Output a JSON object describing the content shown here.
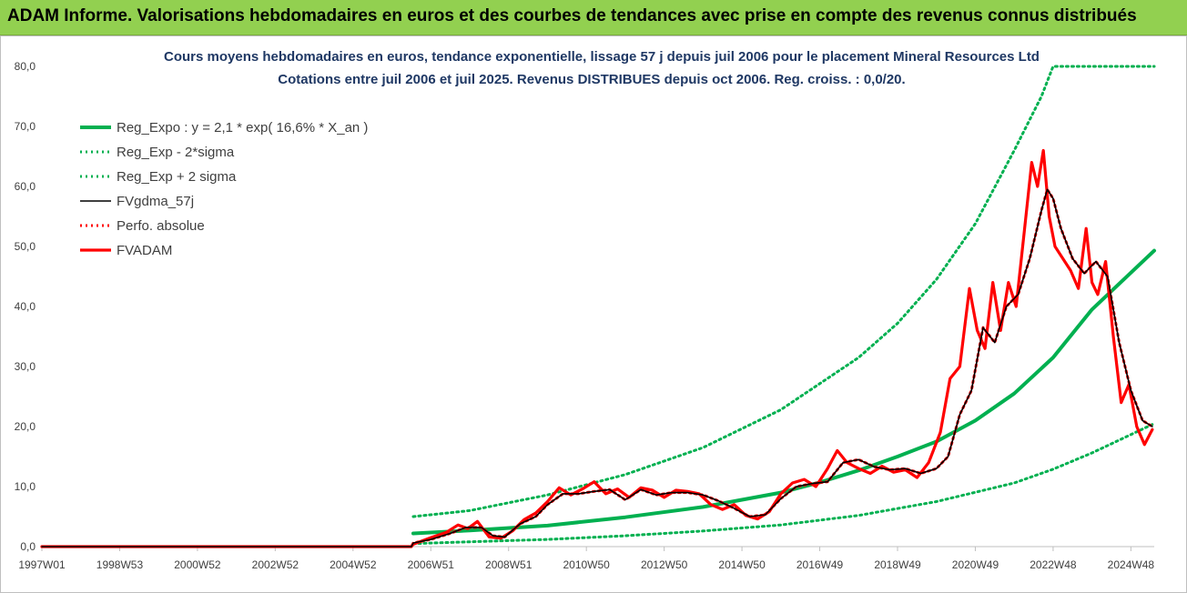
{
  "header": {
    "title": "ADAM Informe. Valorisations hebdomadaires en euros et des courbes de tendances avec prise en compte des revenus connus distribués"
  },
  "colors": {
    "banner": "#92d050",
    "trend": "#00b050",
    "sigma": "#00b050",
    "fvgdma": "#000000",
    "perfo": "#ff0000",
    "fvadam": "#ff0000"
  },
  "chart_data": {
    "type": "line",
    "title": "Cours moyens hebdomadaires en euros, tendance exponentielle, lissage 57 j depuis juil 2006 pour le placement Mineral Resources Ltd",
    "subtitle": "Cotations entre juil 2006 et juil 2025.  Revenus DISTRIBUES depuis oct 2006. Reg. croiss. : 0,0/20.",
    "xlabel": "",
    "ylabel": "",
    "x_range": [
      1997.0,
      2025.6
    ],
    "ylim": [
      0,
      80
    ],
    "y_ticks": [
      "0,0",
      "10,0",
      "20,0",
      "30,0",
      "40,0",
      "50,0",
      "60,0",
      "70,0",
      "80,0"
    ],
    "x_ticks": [
      {
        "label": "1997W01",
        "x": 1997.0
      },
      {
        "label": "1998W53",
        "x": 1999.0
      },
      {
        "label": "2000W52",
        "x": 2001.0
      },
      {
        "label": "2002W52",
        "x": 2003.0
      },
      {
        "label": "2004W52",
        "x": 2005.0
      },
      {
        "label": "2006W51",
        "x": 2007.0
      },
      {
        "label": "2008W51",
        "x": 2009.0
      },
      {
        "label": "2010W50",
        "x": 2011.0
      },
      {
        "label": "2012W50",
        "x": 2013.0
      },
      {
        "label": "2014W50",
        "x": 2015.0
      },
      {
        "label": "2016W49",
        "x": 2017.0
      },
      {
        "label": "2018W49",
        "x": 2019.0
      },
      {
        "label": "2020W49",
        "x": 2021.0
      },
      {
        "label": "2022W48",
        "x": 2023.0
      },
      {
        "label": "2024W48",
        "x": 2025.0
      }
    ],
    "grid": false,
    "legend_position": "top-left",
    "series": [
      {
        "name": "Reg_Expo : y = 2,1 * exp( 16,6% *  X_an )",
        "style": "solid-thick",
        "color": "#00b050",
        "x": [
          2006.55,
          2008,
          2010,
          2012,
          2014,
          2016,
          2017,
          2018,
          2019,
          2020,
          2021,
          2022,
          2023,
          2024,
          2025.6
        ],
        "y": [
          2.2,
          2.7,
          3.5,
          4.9,
          6.6,
          9.0,
          10.7,
          12.7,
          15.0,
          17.5,
          21.0,
          25.5,
          31.5,
          39.5,
          49.3
        ]
      },
      {
        "name": "Reg_Exp - 2*sigma",
        "style": "dotted",
        "color": "#00b050",
        "x": [
          2006.55,
          2008,
          2010,
          2012,
          2014,
          2016,
          2018,
          2020,
          2022,
          2023,
          2024,
          2025.6
        ],
        "y": [
          0.5,
          0.8,
          1.2,
          1.8,
          2.6,
          3.6,
          5.2,
          7.5,
          10.6,
          12.9,
          15.6,
          20.5
        ]
      },
      {
        "name": "Reg_Exp + 2 sigma",
        "style": "dotted",
        "color": "#00b050",
        "x": [
          2006.55,
          2008,
          2010,
          2012,
          2014,
          2016,
          2018,
          2019,
          2020,
          2021,
          2022,
          2022.7,
          2023.0,
          2025.6
        ],
        "y": [
          5.0,
          6.0,
          8.6,
          12.0,
          16.5,
          22.8,
          31.5,
          37.2,
          44.5,
          53.8,
          66.0,
          75.0,
          80.0,
          80.0
        ]
      },
      {
        "name": "FVgdma_57j",
        "style": "solid",
        "color": "#000000",
        "x": [
          1997.0,
          2006.5,
          2006.55,
          2007.0,
          2007.5,
          2007.9,
          2008.3,
          2008.6,
          2008.9,
          2009.3,
          2009.7,
          2010.0,
          2010.4,
          2010.8,
          2011.2,
          2011.6,
          2012.0,
          2012.4,
          2012.8,
          2013.2,
          2013.6,
          2014.0,
          2014.4,
          2014.8,
          2015.2,
          2015.6,
          2016.0,
          2016.4,
          2016.8,
          2017.2,
          2017.6,
          2018.0,
          2018.4,
          2018.8,
          2019.2,
          2019.6,
          2020.0,
          2020.3,
          2020.6,
          2020.9,
          2021.2,
          2021.5,
          2021.8,
          2022.1,
          2022.4,
          2022.7,
          2022.85,
          2023.0,
          2023.2,
          2023.5,
          2023.8,
          2024.1,
          2024.4,
          2024.7,
          2025.0,
          2025.3,
          2025.55
        ],
        "y": [
          0,
          0,
          0.6,
          1.2,
          2.2,
          3.2,
          3.2,
          1.8,
          1.6,
          3.8,
          5.0,
          7.0,
          8.8,
          8.8,
          9.2,
          9.5,
          7.8,
          9.5,
          8.6,
          9.0,
          9.0,
          8.6,
          7.6,
          6.4,
          5.0,
          5.3,
          8.0,
          10.0,
          10.5,
          10.8,
          14.0,
          14.5,
          13.3,
          12.8,
          13.0,
          12.2,
          13.0,
          15.0,
          22.0,
          26.0,
          36.5,
          34.0,
          40.0,
          42.0,
          48.0,
          56.0,
          59.5,
          58.0,
          53.0,
          48.0,
          45.5,
          47.5,
          45.0,
          34.0,
          26.0,
          21.0,
          20.0
        ]
      },
      {
        "name": "Perfo. absolue",
        "style": "dotted",
        "color": "#ff0000",
        "x": [
          1997.0,
          2006.5,
          2006.55,
          2007.0,
          2007.5,
          2007.9,
          2008.3,
          2008.6,
          2008.9,
          2009.3,
          2009.7,
          2010.0,
          2010.4,
          2010.8,
          2011.2,
          2011.6,
          2012.0,
          2012.4,
          2012.8,
          2013.2,
          2013.6,
          2014.0,
          2014.4,
          2014.8,
          2015.2,
          2015.6,
          2016.0,
          2016.4,
          2016.8,
          2017.2,
          2017.6,
          2018.0,
          2018.4,
          2018.8,
          2019.2,
          2019.6,
          2020.0,
          2020.3,
          2020.6,
          2020.9,
          2021.2,
          2021.5,
          2021.8,
          2022.1,
          2022.4,
          2022.7,
          2022.85,
          2023.0,
          2023.2,
          2023.5,
          2023.8,
          2024.1,
          2024.4,
          2024.7,
          2025.0,
          2025.3,
          2025.55
        ],
        "y": [
          0,
          0,
          0.6,
          1.2,
          2.2,
          3.2,
          3.2,
          1.8,
          1.6,
          3.8,
          5.0,
          7.0,
          8.8,
          8.8,
          9.2,
          9.5,
          7.8,
          9.5,
          8.6,
          9.0,
          9.0,
          8.6,
          7.6,
          6.4,
          5.0,
          5.3,
          8.0,
          10.0,
          10.5,
          10.8,
          14.0,
          14.5,
          13.3,
          12.8,
          13.0,
          12.2,
          13.0,
          15.0,
          22.0,
          26.0,
          36.5,
          34.0,
          40.0,
          42.0,
          48.0,
          56.0,
          59.5,
          58.0,
          53.0,
          48.0,
          45.5,
          47.5,
          45.0,
          34.0,
          26.0,
          21.0,
          20.0
        ]
      },
      {
        "name": "FVADAM",
        "style": "solid-thick",
        "color": "#ff0000",
        "x": [
          1997.0,
          2006.5,
          2006.55,
          2007.0,
          2007.4,
          2007.7,
          2007.95,
          2008.2,
          2008.5,
          2008.8,
          2009.1,
          2009.4,
          2009.7,
          2010.0,
          2010.3,
          2010.6,
          2010.9,
          2011.2,
          2011.5,
          2011.8,
          2012.1,
          2012.4,
          2012.7,
          2013.0,
          2013.3,
          2013.6,
          2013.9,
          2014.2,
          2014.5,
          2014.8,
          2015.1,
          2015.4,
          2015.7,
          2016.0,
          2016.3,
          2016.6,
          2016.9,
          2017.2,
          2017.45,
          2017.7,
          2018.0,
          2018.3,
          2018.6,
          2018.9,
          2019.2,
          2019.5,
          2019.8,
          2020.1,
          2020.35,
          2020.6,
          2020.85,
          2021.05,
          2021.25,
          2021.45,
          2021.65,
          2021.85,
          2022.05,
          2022.25,
          2022.45,
          2022.6,
          2022.75,
          2022.9,
          2023.05,
          2023.25,
          2023.45,
          2023.65,
          2023.85,
          2024.0,
          2024.15,
          2024.35,
          2024.55,
          2024.75,
          2024.95,
          2025.15,
          2025.35,
          2025.55
        ],
        "y": [
          0,
          0,
          0.4,
          1.5,
          2.4,
          3.6,
          3.0,
          4.2,
          1.6,
          1.4,
          2.6,
          4.5,
          5.6,
          7.5,
          9.8,
          8.6,
          9.6,
          10.8,
          8.8,
          9.6,
          8.2,
          9.8,
          9.4,
          8.2,
          9.4,
          9.2,
          8.8,
          7.0,
          6.2,
          7.0,
          5.2,
          4.6,
          5.8,
          8.8,
          10.6,
          11.2,
          10.0,
          13.0,
          16.0,
          14.0,
          13.0,
          12.2,
          13.4,
          12.4,
          12.8,
          11.5,
          14.0,
          19.0,
          28.0,
          30.0,
          43.0,
          36.0,
          33.0,
          44.0,
          36.0,
          44.0,
          40.0,
          52.0,
          64.0,
          60.0,
          66.0,
          55.0,
          50.0,
          48.0,
          46.0,
          43.0,
          53.0,
          44.0,
          42.0,
          47.5,
          35.0,
          24.0,
          27.0,
          20.0,
          17.0,
          19.5
        ]
      }
    ]
  }
}
